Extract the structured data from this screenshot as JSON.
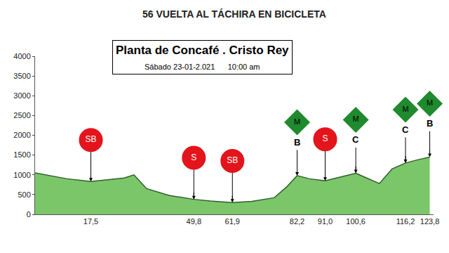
{
  "chart_data": {
    "type": "area",
    "header": "56 VUELTA AL TÁCHIRA EN BICICLETA",
    "title": "Planta de Concafé . Cristo Rey",
    "subtitle": "Sábado 23-01-2.021      10:00 am",
    "x": [
      0,
      5,
      10,
      17.5,
      24,
      28,
      31,
      35,
      42,
      49.8,
      55,
      61.9,
      68,
      75,
      79,
      82.2,
      86,
      91,
      95,
      100.6,
      104,
      108,
      112,
      116.2,
      120,
      123.8
    ],
    "values": [
      1050,
      980,
      900,
      830,
      880,
      920,
      1000,
      650,
      480,
      380,
      340,
      300,
      330,
      420,
      700,
      980,
      900,
      850,
      930,
      1040,
      920,
      780,
      1150,
      1300,
      1380,
      1450
    ],
    "color": "#7cc66a",
    "xlim": [
      0,
      125
    ],
    "xticks": [
      {
        "value": 17.5,
        "label": "17,5"
      },
      {
        "value": 49.8,
        "label": "49,8"
      },
      {
        "value": 61.9,
        "label": "61,9"
      },
      {
        "value": 82.2,
        "label": "82,2"
      },
      {
        "value": 91.0,
        "label": "91,0"
      },
      {
        "value": 100.6,
        "label": "100,6"
      },
      {
        "value": 116.2,
        "label": "116,2"
      },
      {
        "value": 123.8,
        "label": "123,8"
      }
    ],
    "ylim": [
      0,
      4000
    ],
    "yticks": [
      0,
      500,
      1000,
      1500,
      2000,
      2500,
      3000,
      3500,
      4000
    ],
    "grid": false,
    "markers": [
      {
        "x": 17.5,
        "label": "SB",
        "marker": "circle",
        "color": "#e3141b"
      },
      {
        "x": 49.8,
        "label": "S",
        "marker": "circle",
        "color": "#e3141b"
      },
      {
        "x": 61.9,
        "label": "SB",
        "marker": "circle",
        "color": "#e3141b"
      },
      {
        "x": 82.2,
        "label": "M",
        "category": "B",
        "marker": "diamond",
        "color": "#1f8a2e"
      },
      {
        "x": 91.0,
        "label": "S",
        "marker": "circle",
        "color": "#e3141b"
      },
      {
        "x": 100.6,
        "label": "M",
        "category": "C",
        "marker": "diamond",
        "color": "#1f8a2e"
      },
      {
        "x": 116.2,
        "label": "M",
        "category": "C",
        "marker": "diamond",
        "color": "#1f8a2e"
      },
      {
        "x": 123.8,
        "label": "M",
        "category": "B",
        "marker": "diamond",
        "color": "#1f8a2e"
      }
    ]
  }
}
